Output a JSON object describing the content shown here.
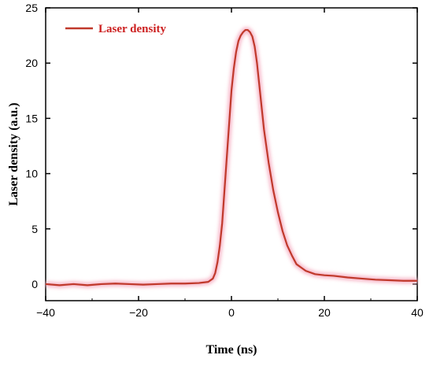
{
  "chart_data": {
    "type": "line",
    "xlabel": "Time (ns)",
    "ylabel": "Laser density (a.u.)",
    "xlim": [
      -40,
      40
    ],
    "ylim": [
      -1.5,
      25
    ],
    "xticks": [
      -40,
      -20,
      0,
      20,
      40
    ],
    "yticks": [
      0,
      5,
      10,
      15,
      20,
      25
    ],
    "xtick_labels": [
      "−40",
      "−20",
      "0",
      "20",
      "40"
    ],
    "ytick_labels": [
      "0",
      "5",
      "10",
      "15",
      "20",
      "25"
    ],
    "grid": false,
    "legend_position": "top-left",
    "line_color": "#c0392b",
    "glow_color": "#f7b6c8",
    "series": [
      {
        "name": "Laser density",
        "x": [
          -40,
          -37,
          -34,
          -31,
          -28,
          -25,
          -22,
          -19,
          -16,
          -13,
          -10,
          -7,
          -5,
          -4,
          -3.5,
          -3,
          -2.5,
          -2,
          -1.5,
          -1,
          -0.5,
          0,
          0.5,
          1,
          1.5,
          2,
          2.5,
          3,
          3.5,
          4,
          4.5,
          5,
          5.5,
          6,
          6.5,
          7,
          7.5,
          8,
          9,
          10,
          11,
          12,
          13,
          14,
          16,
          18,
          20,
          22,
          25,
          28,
          31,
          34,
          37,
          40
        ],
        "y": [
          0.0,
          -0.1,
          0.0,
          -0.1,
          0.0,
          0.05,
          0.0,
          -0.05,
          0.0,
          0.05,
          0.05,
          0.1,
          0.2,
          0.5,
          1.0,
          2.0,
          3.5,
          5.5,
          8.5,
          11.5,
          14.5,
          17.5,
          19.5,
          21.0,
          22.0,
          22.5,
          22.8,
          23.0,
          23.0,
          22.8,
          22.4,
          21.5,
          20.0,
          18.0,
          16.0,
          14.0,
          12.5,
          11.0,
          8.5,
          6.5,
          4.8,
          3.5,
          2.6,
          1.8,
          1.2,
          0.9,
          0.8,
          0.75,
          0.6,
          0.5,
          0.4,
          0.35,
          0.3,
          0.3
        ]
      }
    ]
  }
}
